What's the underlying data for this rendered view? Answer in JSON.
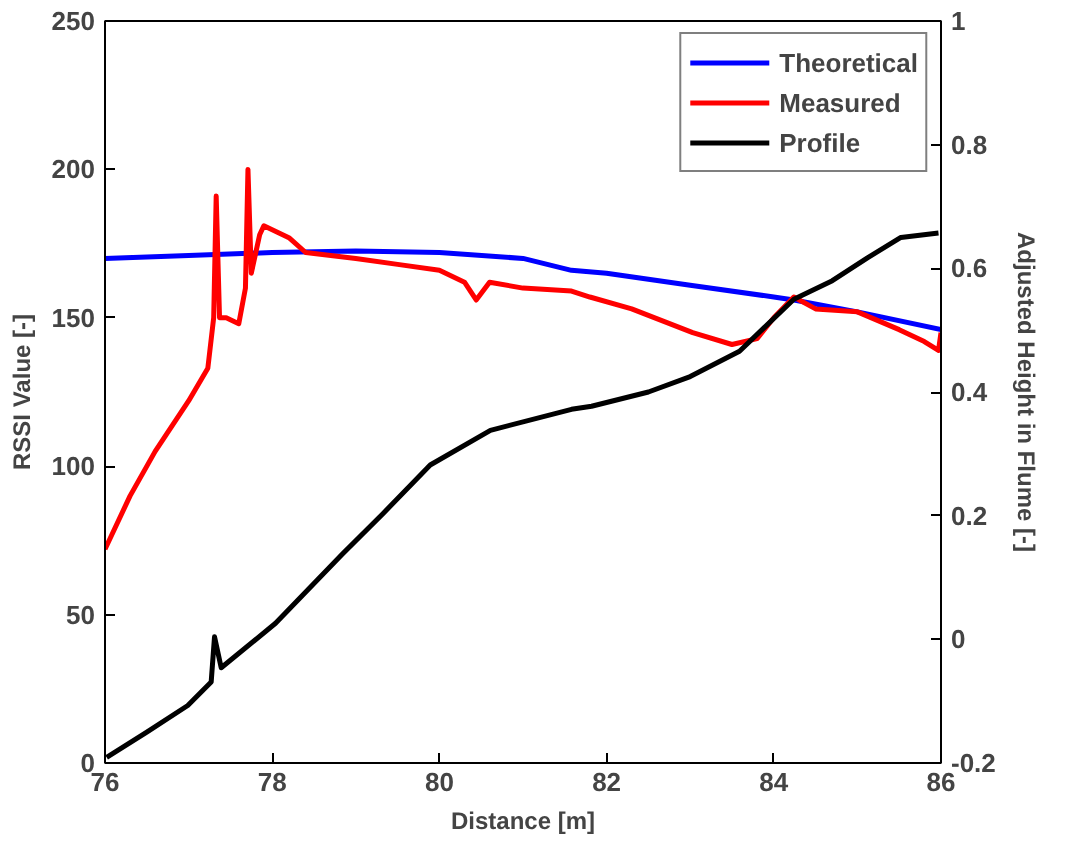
{
  "chart_data": {
    "type": "line",
    "xlabel": "Distance [m]",
    "ylabel": "RSSI Value [-]",
    "y2label": "Adjusted Height in Flume [-]",
    "xlim": [
      76,
      86
    ],
    "xticks": [
      76,
      78,
      80,
      82,
      84,
      86
    ],
    "ylim": [
      0,
      250
    ],
    "yticks": [
      0,
      50,
      100,
      150,
      200,
      250
    ],
    "y2lim": [
      -0.2,
      1
    ],
    "y2ticks": [
      -0.2,
      0,
      0.2,
      0.4,
      0.6,
      0.8,
      1
    ],
    "grid": false,
    "legend": "top right",
    "line_style": "solid",
    "marker": "none",
    "series": [
      {
        "name": "Theoretical",
        "color": "#0000ff",
        "x": [
          76,
          77,
          78,
          79,
          80,
          81,
          81.58,
          82,
          83,
          84,
          84.24,
          85,
          86
        ],
        "values": [
          170,
          171,
          172,
          172.5,
          172,
          170,
          166,
          165,
          161,
          157,
          156,
          152,
          146
        ]
      },
      {
        "name": "Measured",
        "color": "#ff0000",
        "x": [
          76,
          76.3,
          76.6,
          77,
          77.23,
          77.3,
          77.33,
          77.37,
          77.45,
          77.6,
          77.68,
          77.71,
          77.75,
          77.85,
          77.9,
          78.2,
          78.4,
          79,
          79.5,
          80,
          80.3,
          80.44,
          80.6,
          81,
          81.58,
          81.8,
          82.3,
          83.03,
          83.5,
          83.8,
          84.0,
          84.24,
          84.5,
          85,
          85.5,
          85.8,
          85.97,
          86
        ],
        "values": [
          72,
          90,
          105,
          122,
          133,
          150,
          191,
          150,
          150,
          148,
          160,
          200,
          165,
          178,
          181,
          177,
          172,
          170,
          168,
          166,
          162,
          156,
          162,
          160,
          159,
          157,
          153,
          145,
          141,
          143,
          150,
          157,
          153,
          152,
          146,
          142,
          139,
          145
        ]
      },
      {
        "name": "Profile",
        "color": "#000000",
        "axis": "y2",
        "x": [
          76.02,
          76.5,
          76.99,
          77.27,
          77.31,
          77.39,
          78.04,
          78.84,
          79.33,
          79.89,
          80.61,
          81.58,
          81.82,
          82.5,
          83.0,
          83.59,
          84.24,
          84.7,
          85.12,
          85.52,
          85.97
        ],
        "values": [
          -0.191,
          -0.15,
          -0.107,
          -0.069,
          0.004,
          -0.046,
          0.026,
          0.138,
          0.204,
          0.282,
          0.338,
          0.372,
          0.377,
          0.4,
          0.425,
          0.466,
          0.55,
          0.58,
          0.617,
          0.65,
          0.657
        ]
      }
    ]
  }
}
